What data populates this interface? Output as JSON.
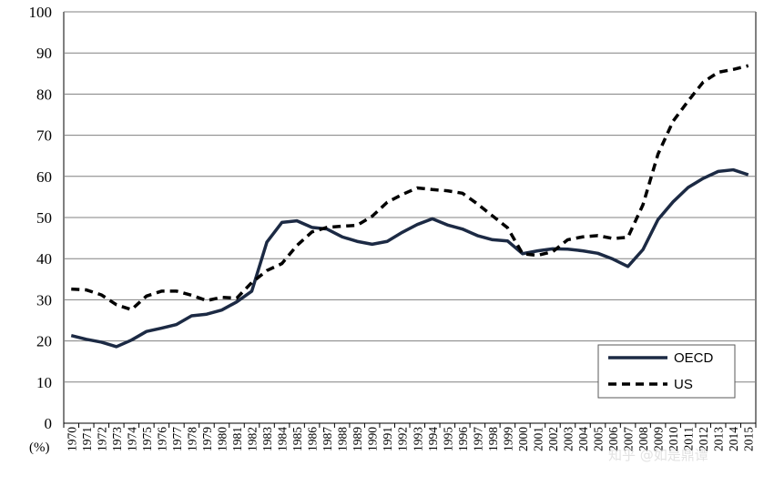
{
  "chart_data": {
    "type": "line",
    "title": "",
    "xlabel": "",
    "ylabel": "",
    "unit_label": "(%)",
    "ylim": [
      0,
      100
    ],
    "yticks": [
      0,
      10,
      20,
      30,
      40,
      50,
      60,
      70,
      80,
      90,
      100
    ],
    "grid": true,
    "legend_position": "bottom-right",
    "x": [
      "1970",
      "1971",
      "1972",
      "1973",
      "1974",
      "1975",
      "1976",
      "1977",
      "1978",
      "1979",
      "1980",
      "1981",
      "1982",
      "1983",
      "1984",
      "1985",
      "1986",
      "1987",
      "1988",
      "1989",
      "1990",
      "1991",
      "1992",
      "1993",
      "1994",
      "1995",
      "1996",
      "1997",
      "1998",
      "1999",
      "2000",
      "2001",
      "2002",
      "2003",
      "2004",
      "2005",
      "2006",
      "2007",
      "2008",
      "2009",
      "2010",
      "2011",
      "2012",
      "2013",
      "2014",
      "2015"
    ],
    "series": [
      {
        "name": "OECD",
        "style": "solid",
        "color": "#1c2a44",
        "values": [
          21.3,
          20.4,
          19.7,
          18.6,
          20.2,
          22.3,
          23.1,
          24.0,
          26.1,
          26.5,
          27.5,
          29.5,
          32.1,
          44.0,
          48.8,
          49.2,
          47.6,
          47.2,
          45.3,
          44.2,
          43.5,
          44.2,
          46.4,
          48.3,
          49.7,
          48.2,
          47.2,
          45.6,
          44.6,
          44.3,
          41.2,
          41.9,
          42.4,
          42.3,
          41.9,
          41.3,
          39.9,
          38.1,
          42.2,
          49.5,
          53.8,
          57.3,
          59.5,
          61.2,
          61.6,
          60.4
        ]
      },
      {
        "name": "US",
        "style": "dashed",
        "color": "#000000",
        "values": [
          32.6,
          32.4,
          31.2,
          28.8,
          27.6,
          30.9,
          32.1,
          32.1,
          31.1,
          29.8,
          30.6,
          30.4,
          34.2,
          37.1,
          38.8,
          43.2,
          46.5,
          47.6,
          47.9,
          48.1,
          50.3,
          53.7,
          55.6,
          57.2,
          56.8,
          56.5,
          55.9,
          53.3,
          50.4,
          47.5,
          41.2,
          40.8,
          41.7,
          44.6,
          45.3,
          45.6,
          44.9,
          45.2,
          53.1,
          65.4,
          73.4,
          78.3,
          82.9,
          85.3,
          86.0,
          86.9
        ]
      }
    ]
  },
  "watermark": "知乎 @如是鼎谭"
}
